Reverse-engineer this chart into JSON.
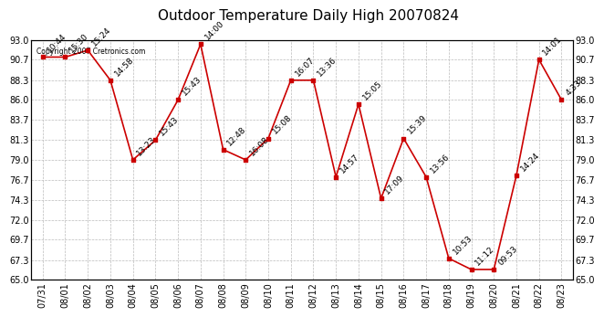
{
  "title": "Outdoor Temperature Daily High 20070824",
  "dates": [
    "07/31",
    "08/01",
    "08/02",
    "08/03",
    "08/04",
    "08/05",
    "08/06",
    "08/07",
    "08/08",
    "08/09",
    "08/10",
    "08/11",
    "08/12",
    "08/13",
    "08/14",
    "08/15",
    "08/16",
    "08/17",
    "08/18",
    "08/19",
    "08/20",
    "08/21",
    "08/22",
    "08/23"
  ],
  "temps": [
    91.0,
    91.0,
    91.8,
    88.3,
    79.0,
    81.3,
    86.0,
    92.5,
    80.2,
    79.0,
    81.5,
    88.3,
    88.3,
    77.0,
    85.5,
    74.5,
    81.5,
    77.0,
    67.5,
    66.2,
    66.2,
    77.2,
    90.7,
    86.0
  ],
  "time_labels": [
    "10:44",
    "15:30",
    "15:24",
    "14:58",
    "13:23",
    "15:43",
    "15:43",
    "14:00",
    "12:48",
    "16:08",
    "15:08",
    "16:07",
    "13:36",
    "14:57",
    "15:05",
    "17:09",
    "15:39",
    "13:56",
    "10:53",
    "11:12",
    "09:53",
    "14:24",
    "14:01",
    "4:33"
  ],
  "yticks": [
    65.0,
    67.3,
    69.7,
    72.0,
    74.3,
    76.7,
    79.0,
    81.3,
    83.7,
    86.0,
    88.3,
    90.7,
    93.0
  ],
  "line_color": "#cc0000",
  "marker_color": "#cc0000",
  "bg_color": "#ffffff",
  "plot_bg_color": "#ffffff",
  "grid_color": "#bbbbbb",
  "copyright_text": "Copyright 2007 Cretronics.com",
  "title_fontsize": 11,
  "label_fontsize": 6.5,
  "tick_fontsize": 7,
  "copyright_fontsize": 5.5,
  "ylim": [
    65.0,
    93.0
  ]
}
